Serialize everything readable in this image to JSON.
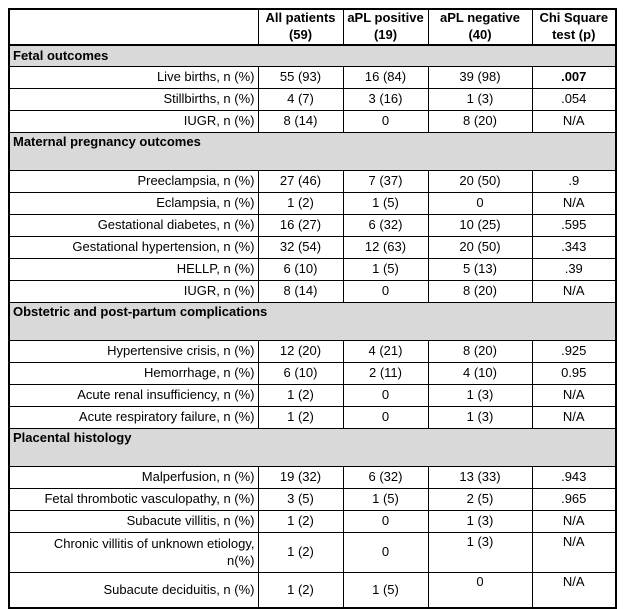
{
  "colors": {
    "section_background": "#d9d9d9",
    "border": "#000000",
    "text": "#000000"
  },
  "header": {
    "corner_label": "",
    "columns": [
      "All patients\n(59)",
      "aPL positive\n(19)",
      "aPL negative\n(40)",
      "Chi Square\ntest (p)"
    ]
  },
  "sections": [
    {
      "title": "Fetal outcomes",
      "tall": false,
      "rows": [
        {
          "label": "Live births, n (%)",
          "values": [
            "55 (93)",
            "16 (84)",
            "39 (98)",
            ".007"
          ],
          "p_bold": true
        },
        {
          "label": "Stillbirths, n (%)",
          "values": [
            "4 (7)",
            "3 (16)",
            "1 (3)",
            ".054"
          ]
        },
        {
          "label": "IUGR, n (%)",
          "values": [
            "8 (14)",
            "0",
            "8 (20)",
            "N/A"
          ]
        }
      ]
    },
    {
      "title": "Maternal pregnancy outcomes",
      "tall": true,
      "rows": [
        {
          "label": "Preeclampsia, n (%)",
          "values": [
            "27 (46)",
            "7 (37)",
            "20 (50)",
            ".9"
          ]
        },
        {
          "label": "Eclampsia, n (%)",
          "values": [
            "1 (2)",
            "1 (5)",
            "0",
            "N/A"
          ]
        },
        {
          "label": "Gestational diabetes, n (%)",
          "values": [
            "16 (27)",
            "6 (32)",
            "10 (25)",
            ".595"
          ]
        },
        {
          "label": "Gestational hypertension, n (%)",
          "values": [
            "32 (54)",
            "12 (63)",
            "20 (50)",
            ".343"
          ]
        },
        {
          "label": "HELLP, n (%)",
          "values": [
            "6 (10)",
            "1 (5)",
            "5 (13)",
            ".39"
          ]
        },
        {
          "label": "IUGR, n (%)",
          "values": [
            "8 (14)",
            "0",
            "8 (20)",
            "N/A"
          ]
        }
      ]
    },
    {
      "title": "Obstetric and post-partum complications",
      "tall": true,
      "rows": [
        {
          "label": "Hypertensive crisis, n (%)",
          "values": [
            "12 (20)",
            "4 (21)",
            "8 (20)",
            ".925"
          ]
        },
        {
          "label": "Hemorrhage, n (%)",
          "values": [
            "6 (10)",
            "2 (11)",
            "4 (10)",
            "0.95"
          ]
        },
        {
          "label": "Acute renal insufficiency, n (%)",
          "values": [
            "1 (2)",
            "0",
            "1 (3)",
            "N/A"
          ]
        },
        {
          "label": "Acute respiratory failure, n (%)",
          "values": [
            "1 (2)",
            "0",
            "1 (3)",
            "N/A"
          ]
        }
      ]
    },
    {
      "title": "Placental histology",
      "tall": true,
      "rows": [
        {
          "label": "Malperfusion, n (%)",
          "values": [
            "19 (32)",
            "6 (32)",
            "13 (33)",
            ".943"
          ]
        },
        {
          "label": "Fetal thrombotic vasculopathy, n (%)",
          "values": [
            "3 (5)",
            "1 (5)",
            "2 (5)",
            ".965"
          ]
        },
        {
          "label": "Subacute villitis, n (%)",
          "values": [
            "1 (2)",
            "0",
            "1 (3)",
            "N/A"
          ]
        },
        {
          "label": "Chronic villitis of unknown etiology,\nn(%)",
          "values": [
            "1 (2)",
            "0",
            "1 (3)",
            "N/A"
          ],
          "height_class": "h38",
          "top_align_cols": [
            2,
            3
          ]
        },
        {
          "label": "Subacute deciduitis, n (%)",
          "values": [
            "1 (2)",
            "1 (5)",
            "0",
            "N/A"
          ],
          "height_class": "h33",
          "top_align_cols": [
            2,
            3
          ]
        }
      ]
    }
  ]
}
